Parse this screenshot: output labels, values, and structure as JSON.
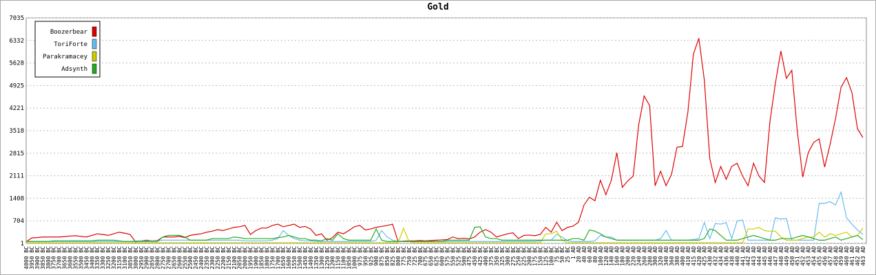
{
  "chart_data": {
    "type": "line",
    "title": "Gold",
    "categories": [
      "4000 BC",
      "3950 BC",
      "3900 BC",
      "3850 BC",
      "3800 BC",
      "3750 BC",
      "3700 BC",
      "3650 BC",
      "3600 BC",
      "3550 BC",
      "3500 BC",
      "3450 BC",
      "3400 BC",
      "3350 BC",
      "3300 BC",
      "3250 BC",
      "3200 BC",
      "3150 BC",
      "3100 BC",
      "3050 BC",
      "3000 BC",
      "2950 BC",
      "2900 BC",
      "2850 BC",
      "2800 BC",
      "2750 BC",
      "2700 BC",
      "2650 BC",
      "2600 BC",
      "2550 BC",
      "2500 BC",
      "2450 BC",
      "2400 BC",
      "2350 BC",
      "2300 BC",
      "2250 BC",
      "2200 BC",
      "2150 BC",
      "2100 BC",
      "2050 BC",
      "2000 BC",
      "1950 BC",
      "1900 BC",
      "1850 BC",
      "1800 BC",
      "1750 BC",
      "1700 BC",
      "1650 BC",
      "1600 BC",
      "1550 BC",
      "1500 BC",
      "1450 BC",
      "1400 BC",
      "1350 BC",
      "1300 BC",
      "1250 BC",
      "1200 BC",
      "1150 BC",
      "1100 BC",
      "1050 BC",
      "1000 BC",
      "975 BC",
      "950 BC",
      "925 BC",
      "900 BC",
      "875 BC",
      "850 BC",
      "825 BC",
      "800 BC",
      "775 BC",
      "750 BC",
      "725 BC",
      "700 BC",
      "675 BC",
      "650 BC",
      "625 BC",
      "600 BC",
      "575 BC",
      "550 BC",
      "525 BC",
      "500 BC",
      "475 BC",
      "450 BC",
      "425 BC",
      "400 BC",
      "375 BC",
      "350 BC",
      "325 BC",
      "300 BC",
      "275 BC",
      "250 BC",
      "225 BC",
      "200 BC",
      "175 BC",
      "150 BC",
      "125 BC",
      "100 BC",
      "75 BC",
      "50 BC",
      "25 BC",
      "1 AD",
      "20 AD",
      "40 AD",
      "60 AD",
      "80 AD",
      "100 AD",
      "120 AD",
      "140 AD",
      "160 AD",
      "180 AD",
      "200 AD",
      "220 AD",
      "240 AD",
      "260 AD",
      "280 AD",
      "300 AD",
      "320 AD",
      "340 AD",
      "360 AD",
      "380 AD",
      "400 AD",
      "410 AD",
      "415 AD",
      "420 AD",
      "425 AD",
      "430 AD",
      "432 AD",
      "434 AD",
      "436 AD",
      "438 AD",
      "440 AD",
      "441 AD",
      "442 AD",
      "443 AD",
      "444 AD",
      "445 AD",
      "446 AD",
      "447 AD",
      "448 AD",
      "449 AD",
      "450 AD",
      "451 AD",
      "452 AD",
      "453 AD",
      "454 AD",
      "455 AD",
      "456 AD",
      "457 AD",
      "458 AD",
      "459 AD",
      "460 AD",
      "461 AD",
      "462 AD",
      "463 AD"
    ],
    "series": [
      {
        "name": "Boozerbear",
        "color": "#dd0000",
        "values": [
          50,
          170,
          180,
          200,
          200,
          200,
          200,
          210,
          230,
          240,
          220,
          200,
          250,
          300,
          280,
          250,
          300,
          350,
          320,
          280,
          50,
          80,
          100,
          80,
          90,
          200,
          200,
          200,
          220,
          180,
          250,
          280,
          300,
          350,
          380,
          430,
          400,
          450,
          500,
          520,
          560,
          280,
          400,
          480,
          480,
          560,
          600,
          520,
          560,
          600,
          500,
          530,
          450,
          250,
          300,
          100,
          180,
          350,
          300,
          400,
          520,
          560,
          420,
          450,
          500,
          530,
          560,
          600,
          60,
          70,
          80,
          80,
          90,
          80,
          90,
          100,
          110,
          120,
          200,
          150,
          160,
          140,
          200,
          350,
          430,
          350,
          200,
          250,
          300,
          330,
          150,
          250,
          260,
          240,
          280,
          500,
          350,
          660,
          400,
          500,
          540,
          660,
          1200,
          1440,
          1330,
          1970,
          1520,
          1970,
          2830,
          1750,
          1950,
          2100,
          3700,
          4600,
          4300,
          1800,
          2250,
          1800,
          2150,
          3000,
          3020,
          4100,
          5900,
          6400,
          5100,
          2650,
          1900,
          2400,
          2000,
          2400,
          2500,
          2100,
          1800,
          2500,
          2100,
          1900,
          3800,
          5000,
          6000,
          5150,
          5400,
          3500,
          2070,
          2830,
          3150,
          3260,
          2380,
          3090,
          3900,
          4870,
          5170,
          4700,
          3580,
          3300
        ]
      },
      {
        "name": "ToriForte",
        "color": "#66bbee",
        "values": [
          60,
          60,
          60,
          60,
          60,
          60,
          60,
          60,
          60,
          60,
          60,
          60,
          60,
          60,
          60,
          60,
          60,
          60,
          60,
          60,
          80,
          80,
          80,
          80,
          80,
          100,
          100,
          100,
          100,
          100,
          100,
          100,
          100,
          100,
          100,
          100,
          100,
          100,
          100,
          100,
          80,
          80,
          80,
          80,
          80,
          100,
          150,
          400,
          250,
          150,
          100,
          80,
          80,
          60,
          60,
          60,
          60,
          60,
          60,
          60,
          60,
          60,
          60,
          60,
          100,
          400,
          200,
          100,
          60,
          60,
          60,
          60,
          60,
          60,
          60,
          60,
          60,
          60,
          60,
          60,
          60,
          60,
          60,
          60,
          60,
          60,
          60,
          60,
          60,
          60,
          60,
          60,
          60,
          60,
          80,
          100,
          100,
          280,
          200,
          80,
          60,
          60,
          60,
          60,
          80,
          250,
          200,
          200,
          100,
          100,
          100,
          100,
          100,
          100,
          100,
          100,
          150,
          400,
          100,
          100,
          100,
          100,
          120,
          150,
          650,
          150,
          620,
          600,
          650,
          150,
          700,
          730,
          100,
          100,
          100,
          100,
          100,
          800,
          760,
          780,
          100,
          100,
          100,
          100,
          100,
          1250,
          1250,
          1300,
          1200,
          1600,
          800,
          600,
          420,
          280
        ]
      },
      {
        "name": "Parakramacey",
        "color": "#cccc00",
        "values": [
          20,
          20,
          20,
          20,
          20,
          20,
          20,
          20,
          20,
          20,
          20,
          20,
          20,
          20,
          20,
          20,
          20,
          20,
          20,
          20,
          20,
          20,
          20,
          20,
          20,
          20,
          20,
          20,
          20,
          20,
          20,
          20,
          20,
          20,
          20,
          20,
          20,
          20,
          20,
          20,
          20,
          20,
          20,
          20,
          20,
          20,
          20,
          20,
          20,
          20,
          20,
          20,
          20,
          20,
          20,
          20,
          20,
          20,
          20,
          20,
          20,
          20,
          20,
          20,
          20,
          20,
          20,
          20,
          20,
          470,
          60,
          20,
          20,
          20,
          20,
          20,
          20,
          20,
          20,
          20,
          20,
          20,
          20,
          20,
          20,
          20,
          20,
          20,
          20,
          20,
          20,
          20,
          20,
          20,
          20,
          300,
          300,
          380,
          100,
          20,
          20,
          20,
          20,
          20,
          20,
          20,
          20,
          20,
          20,
          20,
          20,
          20,
          20,
          20,
          20,
          20,
          20,
          20,
          20,
          20,
          20,
          20,
          20,
          20,
          20,
          20,
          20,
          20,
          20,
          20,
          20,
          20,
          450,
          450,
          500,
          400,
          380,
          380,
          200,
          100,
          100,
          100,
          150,
          200,
          200,
          350,
          200,
          300,
          250,
          300,
          350,
          200,
          250,
          480
        ]
      },
      {
        "name": "Adsynth",
        "color": "#22aa22",
        "values": [
          60,
          60,
          60,
          60,
          60,
          80,
          80,
          80,
          80,
          80,
          80,
          80,
          80,
          100,
          100,
          100,
          100,
          80,
          60,
          60,
          60,
          60,
          60,
          60,
          60,
          200,
          250,
          250,
          250,
          200,
          100,
          100,
          100,
          100,
          150,
          150,
          150,
          150,
          200,
          180,
          150,
          150,
          150,
          150,
          150,
          150,
          180,
          200,
          250,
          200,
          150,
          150,
          100,
          100,
          80,
          150,
          100,
          300,
          150,
          100,
          100,
          100,
          100,
          100,
          450,
          100,
          60,
          60,
          60,
          60,
          60,
          60,
          60,
          60,
          60,
          60,
          60,
          100,
          100,
          100,
          100,
          100,
          500,
          520,
          200,
          150,
          150,
          100,
          100,
          100,
          100,
          100,
          100,
          100,
          100,
          100,
          100,
          100,
          100,
          100,
          150,
          150,
          100,
          420,
          380,
          300,
          200,
          150,
          100,
          100,
          100,
          100,
          100,
          100,
          100,
          100,
          100,
          100,
          100,
          100,
          100,
          100,
          100,
          100,
          150,
          450,
          400,
          250,
          100,
          100,
          100,
          150,
          200,
          250,
          200,
          150,
          100,
          100,
          150,
          150,
          150,
          200,
          250,
          200,
          150,
          100,
          100,
          150,
          200,
          100,
          150,
          200,
          250,
          120
        ]
      }
    ],
    "ylim": [
      1,
      7035
    ],
    "yticks": [
      1,
      704,
      1408,
      2111,
      2815,
      3518,
      4221,
      4925,
      5628,
      6332,
      7035
    ],
    "grid": true,
    "legend": "top-left"
  }
}
